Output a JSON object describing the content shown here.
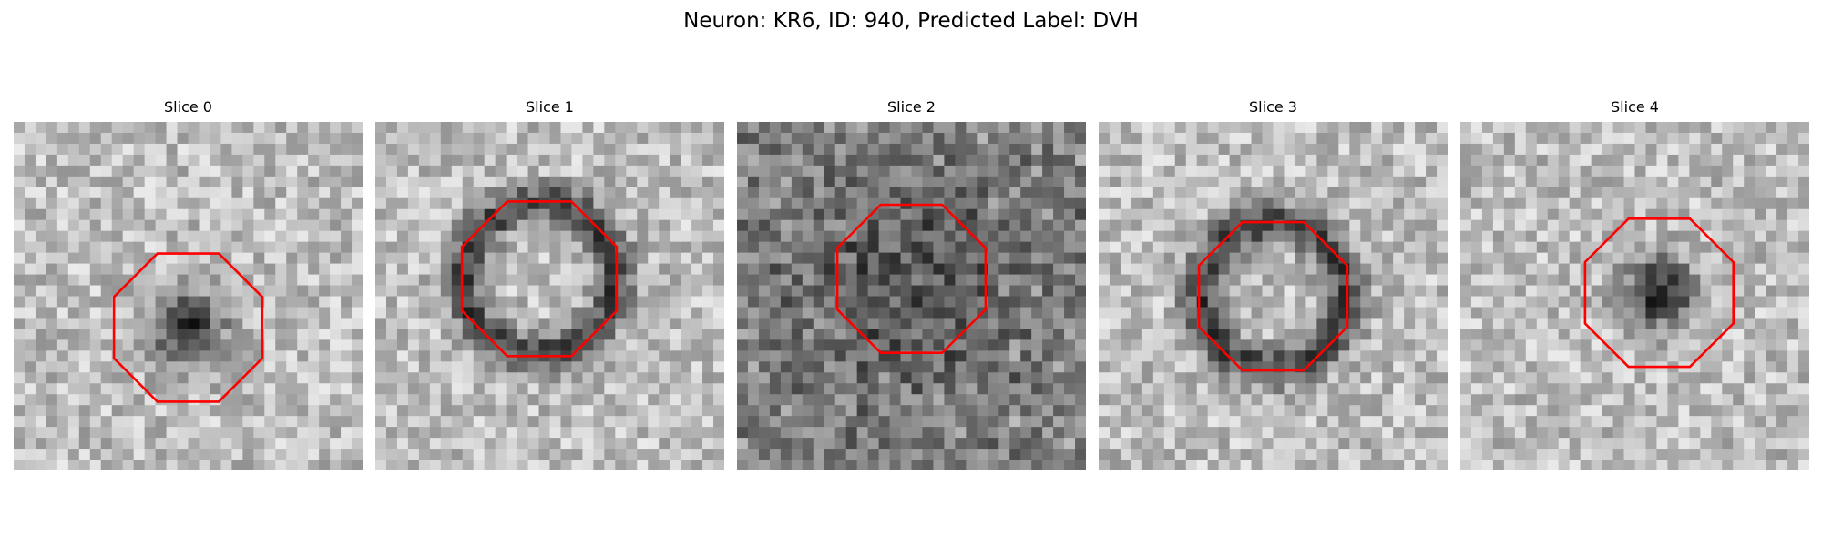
{
  "figure": {
    "title": "Neuron: KR6, ID: 940, Predicted Label: DVH"
  },
  "outline_color": "#ff0000",
  "slices": [
    {
      "title": "Slice 0",
      "dark_feature": "blob",
      "outline_center": [
        0.5,
        0.59
      ],
      "outline_radius": 0.23
    },
    {
      "title": "Slice 1",
      "dark_feature": "ring",
      "outline_center": [
        0.47,
        0.45
      ],
      "outline_radius": 0.24
    },
    {
      "title": "Slice 2",
      "dark_feature": "speckle",
      "outline_center": [
        0.5,
        0.45
      ],
      "outline_radius": 0.23
    },
    {
      "title": "Slice 3",
      "dark_feature": "ring",
      "outline_center": [
        0.5,
        0.5
      ],
      "outline_radius": 0.23
    },
    {
      "title": "Slice 4",
      "dark_feature": "blob",
      "outline_center": [
        0.57,
        0.49
      ],
      "outline_radius": 0.23
    }
  ]
}
